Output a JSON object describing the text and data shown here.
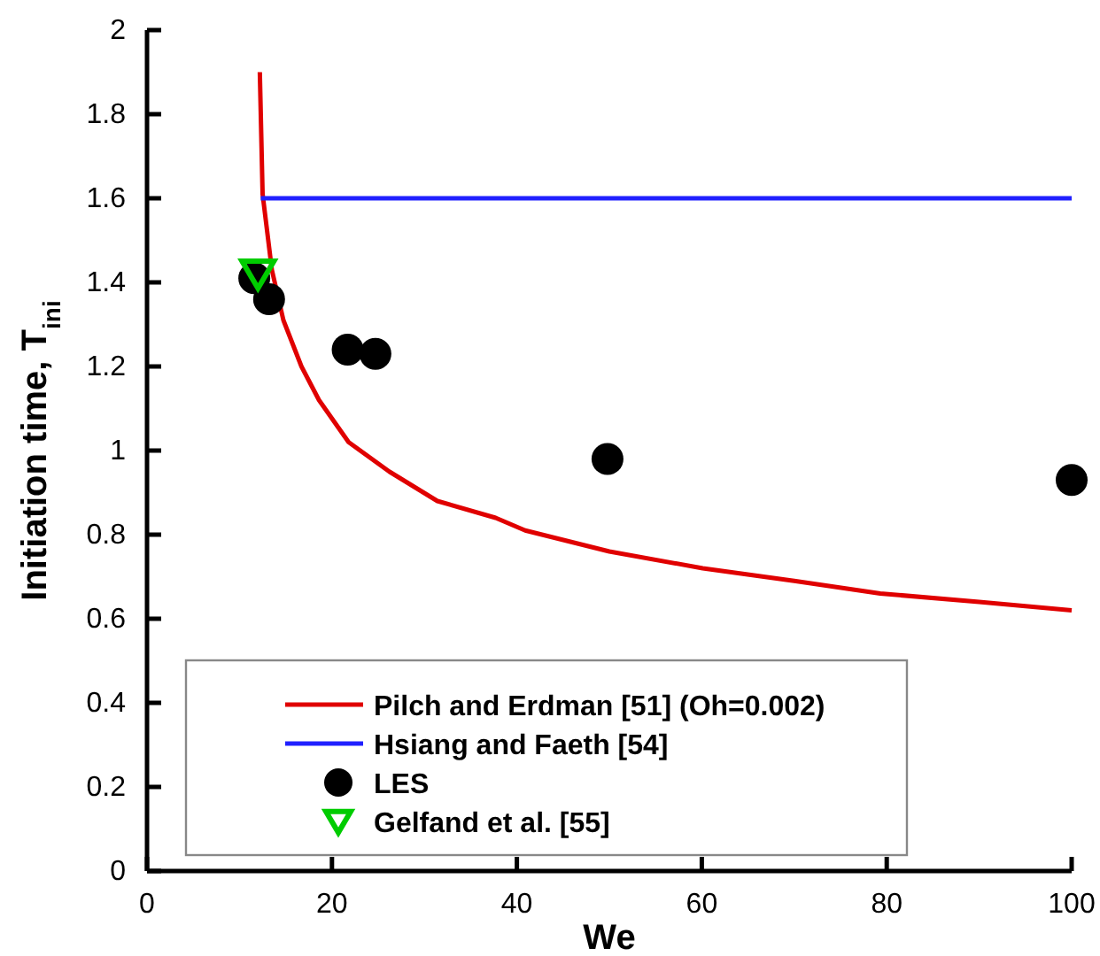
{
  "chart_data": {
    "type": "line",
    "xlabel": "We",
    "ylabel": "Initiation time, T$_{ini}$",
    "xlim": [
      0,
      100
    ],
    "ylim": [
      0,
      2
    ],
    "xticks": [
      0,
      20,
      40,
      60,
      80,
      100
    ],
    "yticks": [
      0,
      {
        "value": 0.2,
        "label": "0.2"
      },
      {
        "value": 0.4,
        "label": "0.4"
      },
      {
        "value": 0.6,
        "label": "0.6"
      },
      {
        "value": 0.8,
        "label": "0.8"
      },
      1,
      {
        "value": 1.2,
        "label": "1.2"
      },
      {
        "value": 1.4,
        "label": "1.4"
      },
      {
        "value": 1.6,
        "label": "1.6"
      },
      {
        "value": 1.8,
        "label": "1.8"
      },
      2
    ],
    "legend": "bottom left",
    "grid": false,
    "series": [
      {
        "name": "Pilch and Erdman [51] (Oh=0.002)",
        "type": "line",
        "color": "#e00000",
        "marker": "none",
        "x": [
          12.2,
          12.5,
          13.5,
          14.75,
          16.7,
          18.6,
          21.8,
          26.2,
          31.4,
          37.7,
          40.9,
          50,
          60.1,
          70,
          79.3,
          90,
          100
        ],
        "values": [
          1.9,
          1.61,
          1.43,
          1.31,
          1.2,
          1.12,
          1.02,
          0.95,
          0.88,
          0.84,
          0.81,
          0.76,
          0.72,
          0.69,
          0.66,
          0.64,
          0.62
        ]
      },
      {
        "name": "Hsiang and Faeth [54]",
        "type": "line",
        "color": "#2020ff",
        "marker": "none",
        "x": [
          12.3,
          100
        ],
        "values": [
          1.6,
          1.6
        ]
      },
      {
        "name": "LES",
        "type": "scatter",
        "color": "#000000",
        "marker": "circle",
        "x": [
          11.6,
          13.2,
          21.7,
          24.7,
          49.8,
          100
        ],
        "values": [
          1.41,
          1.36,
          1.24,
          1.23,
          0.98,
          0.93
        ]
      },
      {
        "name": "Gelfand et al. [55]",
        "type": "scatter",
        "color": "#00cc00",
        "marker": "triangle",
        "x": [
          12
        ],
        "values": [
          1.42
        ]
      }
    ]
  }
}
